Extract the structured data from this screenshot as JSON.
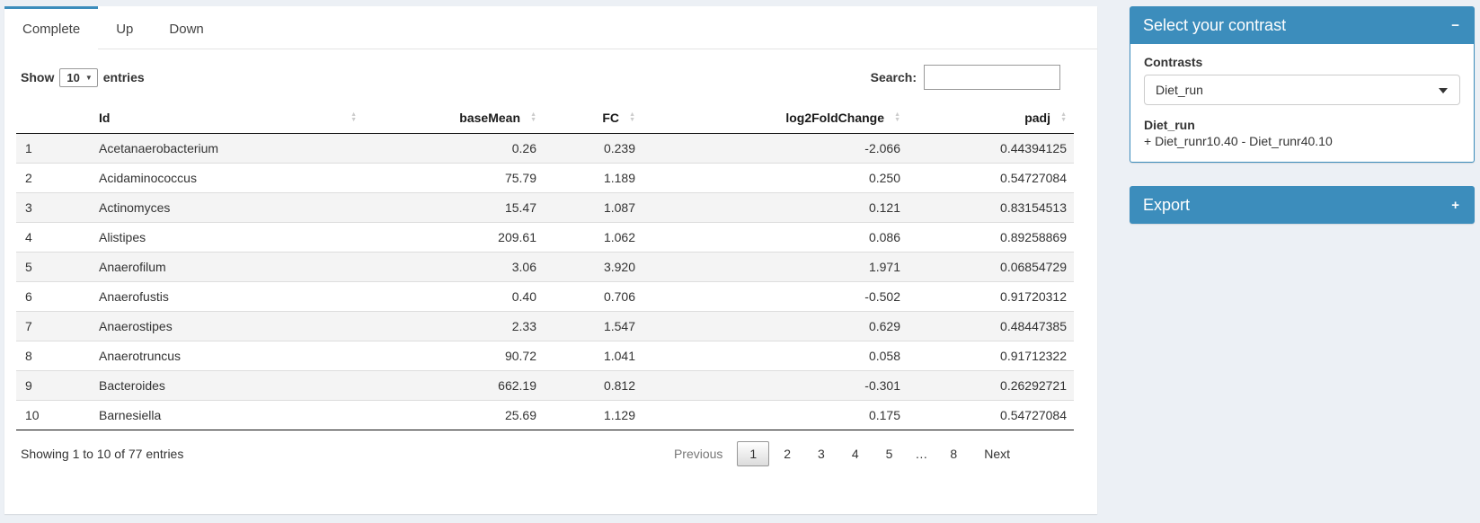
{
  "tabs": [
    {
      "label": "Complete",
      "active": true
    },
    {
      "label": "Up",
      "active": false
    },
    {
      "label": "Down",
      "active": false
    }
  ],
  "length_control": {
    "show_label": "Show",
    "value": "10",
    "entries_label": "entries"
  },
  "search": {
    "label": "Search:",
    "value": ""
  },
  "table": {
    "columns": [
      {
        "label": ""
      },
      {
        "label": "Id"
      },
      {
        "label": "baseMean"
      },
      {
        "label": "FC"
      },
      {
        "label": "log2FoldChange"
      },
      {
        "label": "padj"
      }
    ],
    "rows": [
      [
        "1",
        "Acetanaerobacterium",
        "0.26",
        "0.239",
        "-2.066",
        "0.44394125"
      ],
      [
        "2",
        "Acidaminococcus",
        "75.79",
        "1.189",
        "0.250",
        "0.54727084"
      ],
      [
        "3",
        "Actinomyces",
        "15.47",
        "1.087",
        "0.121",
        "0.83154513"
      ],
      [
        "4",
        "Alistipes",
        "209.61",
        "1.062",
        "0.086",
        "0.89258869"
      ],
      [
        "5",
        "Anaerofilum",
        "3.06",
        "3.920",
        "1.971",
        "0.06854729"
      ],
      [
        "6",
        "Anaerofustis",
        "0.40",
        "0.706",
        "-0.502",
        "0.91720312"
      ],
      [
        "7",
        "Anaerostipes",
        "2.33",
        "1.547",
        "0.629",
        "0.48447385"
      ],
      [
        "8",
        "Anaerotruncus",
        "90.72",
        "1.041",
        "0.058",
        "0.91712322"
      ],
      [
        "9",
        "Bacteroides",
        "662.19",
        "0.812",
        "-0.301",
        "0.26292721"
      ],
      [
        "10",
        "Barnesiella",
        "25.69",
        "1.129",
        "0.175",
        "0.54727084"
      ]
    ],
    "info": "Showing 1 to 10 of 77 entries",
    "pagination": {
      "previous": "Previous",
      "pages": [
        "1",
        "2",
        "3",
        "4",
        "5",
        "…",
        "8"
      ],
      "current_page": "1",
      "next": "Next"
    }
  },
  "contrast_panel": {
    "title": "Select your contrast",
    "collapse_icon": "−",
    "contrasts_label": "Contrasts",
    "selected_contrast": "Diet_run",
    "contrast_name": "Diet_run",
    "contrast_formula": "+ Diet_runr10.40 - Diet_runr40.10"
  },
  "export_panel": {
    "title": "Export",
    "expand_icon": "+"
  },
  "colors": {
    "primary": "#3c8dbc",
    "page_bg": "#ecf0f5"
  }
}
